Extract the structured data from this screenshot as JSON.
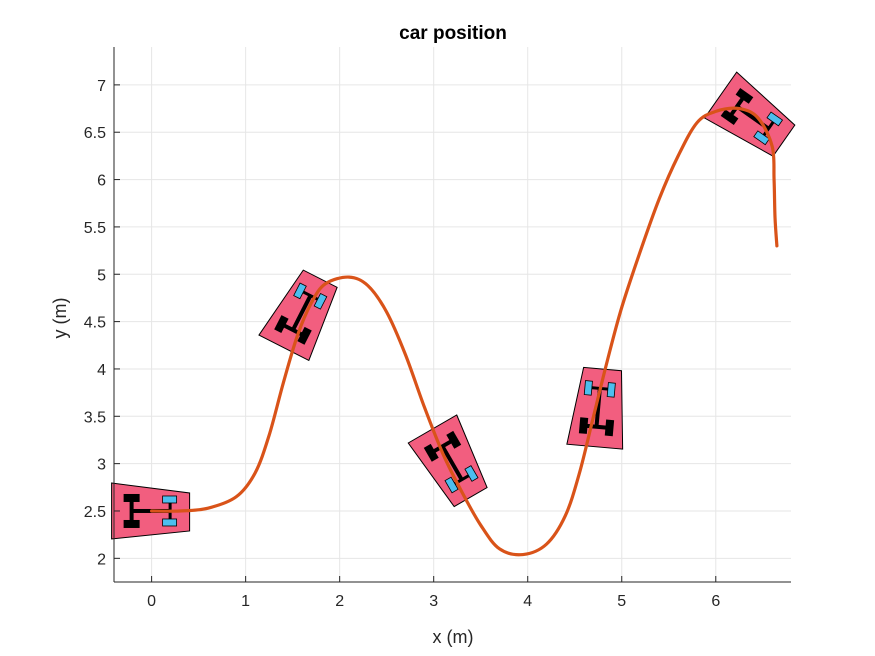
{
  "chart_data": {
    "type": "line",
    "title": "car position",
    "xlabel": "x (m)",
    "ylabel": "y (m)",
    "xlim": [
      -0.4,
      6.8
    ],
    "ylim": [
      1.75,
      7.4
    ],
    "grid": true,
    "x_ticks": [
      "0",
      "1",
      "2",
      "3",
      "4",
      "5",
      "6"
    ],
    "y_ticks": [
      "2",
      "2.5",
      "3",
      "3.5",
      "4",
      "4.5",
      "5",
      "5.5",
      "6",
      "6.5",
      "7"
    ],
    "series": [
      {
        "color": "#D95319",
        "points": [
          [
            0.0,
            2.5
          ],
          [
            0.3,
            2.5
          ],
          [
            0.6,
            2.53
          ],
          [
            0.9,
            2.65
          ],
          [
            1.1,
            2.9
          ],
          [
            1.25,
            3.3
          ],
          [
            1.4,
            3.85
          ],
          [
            1.55,
            4.35
          ],
          [
            1.7,
            4.7
          ],
          [
            1.85,
            4.9
          ],
          [
            2.1,
            4.97
          ],
          [
            2.3,
            4.88
          ],
          [
            2.5,
            4.6
          ],
          [
            2.7,
            4.15
          ],
          [
            2.9,
            3.6
          ],
          [
            3.1,
            3.1
          ],
          [
            3.3,
            2.7
          ],
          [
            3.5,
            2.35
          ],
          [
            3.7,
            2.1
          ],
          [
            3.95,
            2.04
          ],
          [
            4.2,
            2.15
          ],
          [
            4.4,
            2.45
          ],
          [
            4.55,
            2.9
          ],
          [
            4.7,
            3.5
          ],
          [
            4.85,
            4.1
          ],
          [
            5.0,
            4.65
          ],
          [
            5.2,
            5.25
          ],
          [
            5.4,
            5.8
          ],
          [
            5.6,
            6.25
          ],
          [
            5.8,
            6.6
          ],
          [
            6.0,
            6.72
          ],
          [
            6.25,
            6.75
          ],
          [
            6.45,
            6.65
          ],
          [
            6.6,
            6.35
          ],
          [
            6.62,
            6.0
          ],
          [
            6.63,
            5.6
          ],
          [
            6.65,
            5.3
          ]
        ]
      }
    ],
    "car_poses": [
      {
        "x": 0.0,
        "y": 2.5,
        "heading_deg": 0
      },
      {
        "x": 1.6,
        "y": 4.6,
        "heading_deg": 63
      },
      {
        "x": 3.2,
        "y": 3.0,
        "heading_deg": -60
      },
      {
        "x": 4.75,
        "y": 3.6,
        "heading_deg": 85
      },
      {
        "x": 6.4,
        "y": 6.65,
        "heading_deg": -35
      }
    ],
    "colors": {
      "car_body": "#F25E7F",
      "front_wheel": "#4DBEEE",
      "rear_wheel": "#000000",
      "grid": "#E6E6E6",
      "axis": "#262626"
    }
  }
}
